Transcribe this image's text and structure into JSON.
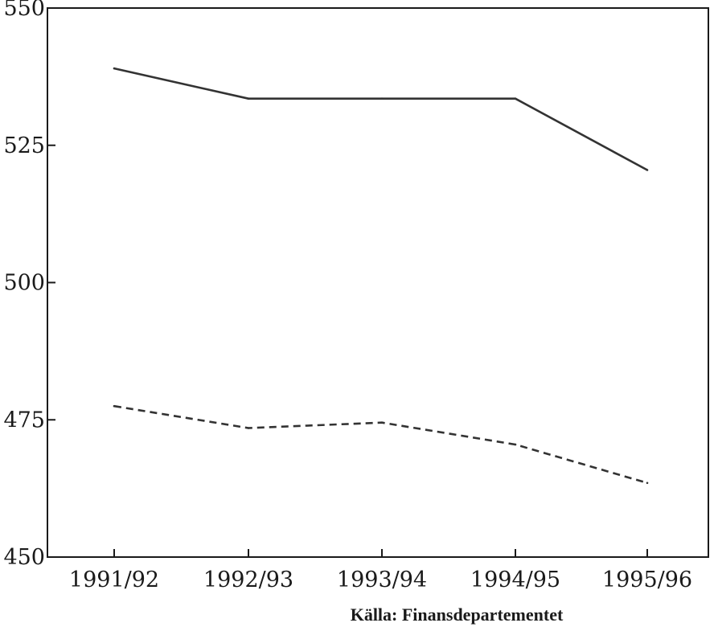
{
  "chart_data": {
    "type": "line",
    "title": "",
    "xlabel": "",
    "ylabel": "",
    "categories": [
      "1991/92",
      "1992/93",
      "1993/94",
      "1994/95",
      "1995/96"
    ],
    "series": [
      {
        "style": "solid",
        "values": [
          539,
          533.5,
          533.5,
          533.5,
          520.5
        ]
      },
      {
        "style": "dashed",
        "values": [
          477.5,
          473.5,
          474.5,
          470.5,
          463.5
        ]
      }
    ],
    "ylim": [
      450,
      550
    ],
    "yticks": [
      450,
      475,
      500,
      525,
      550
    ],
    "grid": false,
    "legend": "none",
    "line_color": "#333333"
  },
  "source": "Källa: Finansdepartementet"
}
